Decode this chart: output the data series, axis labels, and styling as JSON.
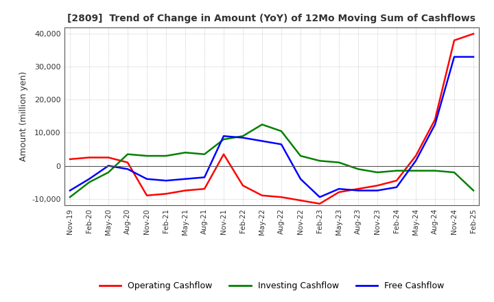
{
  "title": "[2809]  Trend of Change in Amount (YoY) of 12Mo Moving Sum of Cashflows",
  "ylabel": "Amount (million yen)",
  "ylim": [
    -12000,
    42000
  ],
  "yticks": [
    -10000,
    0,
    10000,
    20000,
    30000,
    40000
  ],
  "legend_labels": [
    "Operating Cashflow",
    "Investing Cashflow",
    "Free Cashflow"
  ],
  "legend_colors": [
    "#ff0000",
    "#008000",
    "#0000ff"
  ],
  "x_labels": [
    "Nov-19",
    "Feb-20",
    "May-20",
    "Aug-20",
    "Nov-20",
    "Feb-21",
    "May-21",
    "Aug-21",
    "Nov-21",
    "Feb-22",
    "May-22",
    "Aug-22",
    "Nov-22",
    "Feb-23",
    "May-23",
    "Aug-23",
    "Nov-23",
    "Feb-24",
    "May-24",
    "Aug-24",
    "Nov-24",
    "Feb-25"
  ],
  "operating": [
    2000,
    2500,
    2500,
    1000,
    -9000,
    -8500,
    -7500,
    -7000,
    3500,
    -6000,
    -9000,
    -9500,
    -10500,
    -11500,
    -8000,
    -7000,
    -6000,
    -4500,
    3000,
    14000,
    38000,
    40000
  ],
  "investing": [
    -9500,
    -5000,
    -2000,
    3500,
    3000,
    3000,
    4000,
    3500,
    8000,
    9000,
    12500,
    10500,
    3000,
    1500,
    1000,
    -1000,
    -2000,
    -1500,
    -1500,
    -1500,
    -2000,
    -7500
  ],
  "free": [
    -7500,
    -4000,
    0,
    -1000,
    -4000,
    -4500,
    -4000,
    -3500,
    9000,
    8500,
    7500,
    6500,
    -4000,
    -9500,
    -7000,
    -7500,
    -7500,
    -6500,
    1500,
    12500,
    33000,
    33000
  ],
  "grid_color": "#aaaaaa",
  "background_color": "#ffffff",
  "title_color": "#333333"
}
